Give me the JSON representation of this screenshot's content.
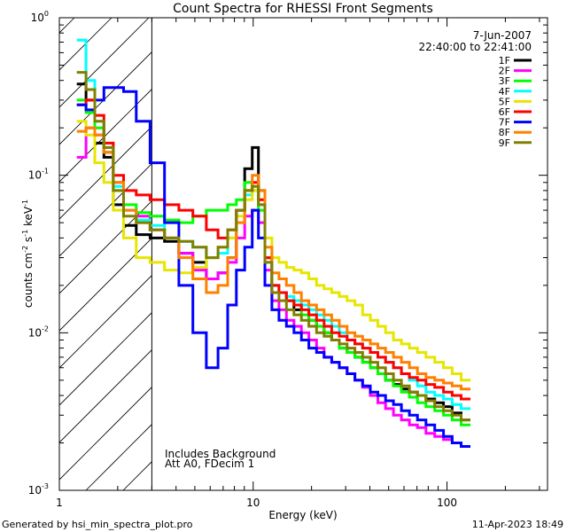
{
  "chart_data": {
    "type": "line",
    "title": "Count Spectra for RHESSI Front Segments",
    "xlabel": "Energy (keV)",
    "ylabel_parts": {
      "prefix": "counts cm",
      "exp1": "-2",
      "mid1": " s",
      "exp2": "-1",
      "mid2": " keV",
      "exp3": "-1"
    },
    "xscale": "log",
    "yscale": "log",
    "xlim": [
      1,
      330
    ],
    "ylim": [
      0.001,
      1.0
    ],
    "x_ticks": [
      {
        "value": 1,
        "label": "1"
      },
      {
        "value": 10,
        "label": "10"
      },
      {
        "value": 100,
        "label": "100"
      }
    ],
    "y_ticks": [
      {
        "value": 1,
        "base": "10",
        "exp": "0"
      },
      {
        "value": 0.1,
        "base": "10",
        "exp": "-1"
      },
      {
        "value": 0.01,
        "base": "10",
        "exp": "-2"
      },
      {
        "value": 0.001,
        "base": "10",
        "exp": "-3"
      }
    ],
    "hatched_region": {
      "x_from": 1,
      "x_to": 3
    },
    "legend": {
      "date": "7-Jun-2007",
      "time_range": "22:40:00 to 22:41:00",
      "placement": "top-right"
    },
    "annotations": [
      "Includes Background",
      "Att A0, FDecim 1"
    ],
    "footer_left": "Generated by hsi_min_spectra_plot.pro",
    "footer_right": "11-Apr-2023 18:49",
    "series": [
      {
        "name": "1F",
        "color": "#000000",
        "values": [
          0.38,
          0.3,
          0.16,
          0.13,
          0.065,
          0.048,
          0.042,
          0.04,
          0.038,
          0.032,
          0.028,
          0.022,
          0.024,
          0.03,
          0.06,
          0.11,
          0.15,
          0.08,
          0.03,
          0.018,
          0.018,
          0.016,
          0.014,
          0.015,
          0.012,
          0.011,
          0.01,
          0.009,
          0.008,
          0.0075,
          0.007,
          0.0065,
          0.006,
          0.0055,
          0.005,
          0.0047,
          0.0044,
          0.0042,
          0.004,
          0.0038,
          0.0036,
          0.0034,
          0.0031,
          0.0028
        ]
      },
      {
        "name": "2F",
        "color": "#ff00ff",
        "values": [
          0.13,
          0.2,
          0.18,
          0.14,
          0.09,
          0.06,
          0.055,
          0.045,
          0.04,
          0.032,
          0.025,
          0.022,
          0.024,
          0.028,
          0.04,
          0.055,
          0.06,
          0.05,
          0.025,
          0.016,
          0.014,
          0.012,
          0.011,
          0.01,
          0.009,
          0.008,
          0.007,
          0.0065,
          0.006,
          0.0055,
          0.005,
          0.0045,
          0.004,
          0.0036,
          0.0033,
          0.003,
          0.0028,
          0.0026,
          0.0025,
          0.0023,
          0.0022,
          0.0021,
          0.002,
          0.0019
        ]
      },
      {
        "name": "3F",
        "color": "#00ff00",
        "values": [
          0.3,
          0.25,
          0.2,
          0.14,
          0.08,
          0.065,
          0.058,
          0.055,
          0.052,
          0.05,
          0.055,
          0.06,
          0.06,
          0.065,
          0.07,
          0.09,
          0.08,
          0.06,
          0.03,
          0.02,
          0.018,
          0.016,
          0.015,
          0.013,
          0.012,
          0.011,
          0.01,
          0.009,
          0.008,
          0.0075,
          0.007,
          0.0065,
          0.006,
          0.0055,
          0.005,
          0.0046,
          0.0042,
          0.0039,
          0.0036,
          0.0034,
          0.0032,
          0.003,
          0.0028,
          0.0026
        ]
      },
      {
        "name": "4F",
        "color": "#00ffff",
        "values": [
          0.72,
          0.4,
          0.22,
          0.15,
          0.085,
          0.06,
          0.052,
          0.048,
          0.04,
          0.038,
          0.035,
          0.03,
          0.032,
          0.04,
          0.06,
          0.075,
          0.08,
          0.065,
          0.03,
          0.02,
          0.018,
          0.017,
          0.016,
          0.015,
          0.014,
          0.013,
          0.012,
          0.011,
          0.01,
          0.009,
          0.0085,
          0.008,
          0.0075,
          0.007,
          0.0065,
          0.006,
          0.0055,
          0.005,
          0.0046,
          0.0042,
          0.004,
          0.0038,
          0.0035,
          0.0033
        ]
      },
      {
        "name": "5F",
        "color": "#e6e600",
        "values": [
          0.22,
          0.18,
          0.12,
          0.09,
          0.06,
          0.04,
          0.03,
          0.028,
          0.025,
          0.024,
          0.026,
          0.03,
          0.035,
          0.04,
          0.055,
          0.07,
          0.08,
          0.07,
          0.04,
          0.03,
          0.028,
          0.026,
          0.025,
          0.024,
          0.022,
          0.02,
          0.019,
          0.018,
          0.017,
          0.016,
          0.015,
          0.013,
          0.012,
          0.011,
          0.01,
          0.009,
          0.0085,
          0.008,
          0.0075,
          0.007,
          0.0065,
          0.006,
          0.0055,
          0.005
        ]
      },
      {
        "name": "6F",
        "color": "#ff0000",
        "values": [
          0.28,
          0.3,
          0.24,
          0.16,
          0.1,
          0.08,
          0.075,
          0.07,
          0.065,
          0.06,
          0.055,
          0.045,
          0.04,
          0.045,
          0.06,
          0.08,
          0.09,
          0.07,
          0.03,
          0.02,
          0.018,
          0.016,
          0.015,
          0.014,
          0.013,
          0.012,
          0.011,
          0.01,
          0.0095,
          0.009,
          0.0085,
          0.008,
          0.0075,
          0.007,
          0.0065,
          0.006,
          0.0055,
          0.0052,
          0.005,
          0.0047,
          0.0045,
          0.0042,
          0.004,
          0.0038
        ]
      },
      {
        "name": "7F",
        "color": "#0000ff",
        "values": [
          0.28,
          0.26,
          0.3,
          0.36,
          0.36,
          0.34,
          0.22,
          0.12,
          0.05,
          0.02,
          0.01,
          0.006,
          0.008,
          0.015,
          0.025,
          0.035,
          0.06,
          0.04,
          0.02,
          0.014,
          0.012,
          0.011,
          0.01,
          0.009,
          0.008,
          0.0075,
          0.007,
          0.0065,
          0.006,
          0.0055,
          0.005,
          0.0046,
          0.0042,
          0.004,
          0.0037,
          0.0035,
          0.0032,
          0.003,
          0.0028,
          0.0026,
          0.0024,
          0.0022,
          0.002,
          0.0019
        ]
      },
      {
        "name": "8F",
        "color": "#ff8000",
        "values": [
          0.19,
          0.2,
          0.18,
          0.14,
          0.09,
          0.06,
          0.05,
          0.045,
          0.04,
          0.03,
          0.022,
          0.018,
          0.02,
          0.03,
          0.05,
          0.08,
          0.1,
          0.08,
          0.035,
          0.024,
          0.022,
          0.02,
          0.018,
          0.016,
          0.015,
          0.014,
          0.013,
          0.012,
          0.011,
          0.01,
          0.0095,
          0.009,
          0.0085,
          0.008,
          0.0075,
          0.007,
          0.0065,
          0.006,
          0.0055,
          0.0052,
          0.005,
          0.0048,
          0.0046,
          0.0044
        ]
      },
      {
        "name": "9F",
        "color": "#808000",
        "values": [
          0.45,
          0.35,
          0.22,
          0.15,
          0.08,
          0.055,
          0.05,
          0.045,
          0.04,
          0.038,
          0.035,
          0.03,
          0.035,
          0.045,
          0.06,
          0.08,
          0.085,
          0.065,
          0.028,
          0.018,
          0.016,
          0.014,
          0.013,
          0.012,
          0.011,
          0.01,
          0.0095,
          0.009,
          0.0085,
          0.008,
          0.0075,
          0.007,
          0.0065,
          0.006,
          0.0055,
          0.005,
          0.0046,
          0.0042,
          0.004,
          0.0037,
          0.0034,
          0.0032,
          0.003,
          0.0028
        ]
      }
    ],
    "x": [
      1.3,
      1.45,
      1.6,
      1.8,
      2.0,
      2.3,
      2.7,
      3.2,
      3.8,
      4.5,
      5.3,
      6.2,
      7.0,
      7.8,
      8.6,
      9.5,
      10.3,
      11.0,
      12.0,
      13.0,
      14.2,
      15.5,
      17.0,
      18.5,
      20.3,
      22.2,
      24.3,
      26.6,
      29.1,
      32.0,
      35.0,
      38.5,
      42.0,
      46.0,
      50.5,
      55.5,
      61.0,
      67.0,
      74.0,
      82.0,
      91.0,
      101.0,
      112.0,
      125.0
    ]
  }
}
